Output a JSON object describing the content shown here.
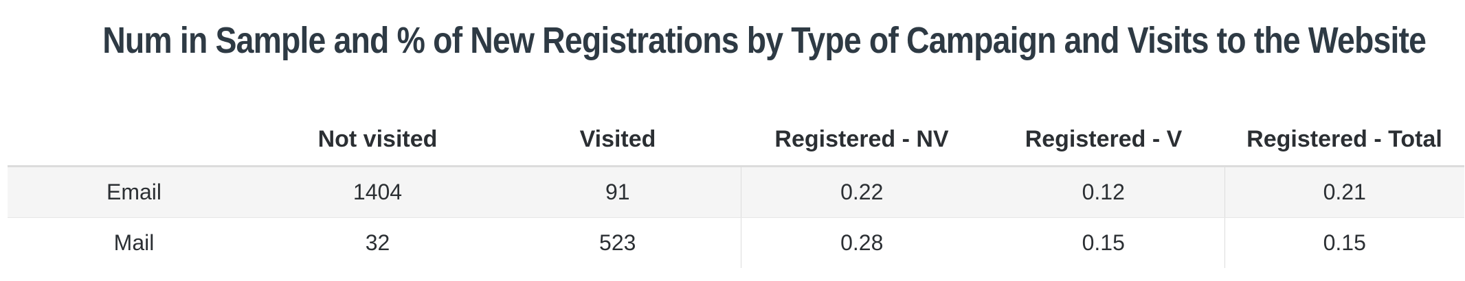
{
  "chart_data": {
    "type": "table",
    "title": "Num in Sample and % of New Registrations by Type of Campaign and Visits to the Website",
    "columns": [
      "",
      "Not visited",
      "Visited",
      "Registered - NV",
      "Registered - V",
      "Registered - Total"
    ],
    "rows": [
      [
        "Email",
        "1404",
        "91",
        "0.22",
        "0.12",
        "0.21"
      ],
      [
        "Mail",
        "32",
        "523",
        "0.28",
        "0.15",
        "0.15"
      ]
    ],
    "colors": {
      "title": "#2e3a44",
      "text": "#2b2f33",
      "stripe": "#f5f5f5",
      "rule": "#dcdcdc"
    }
  }
}
